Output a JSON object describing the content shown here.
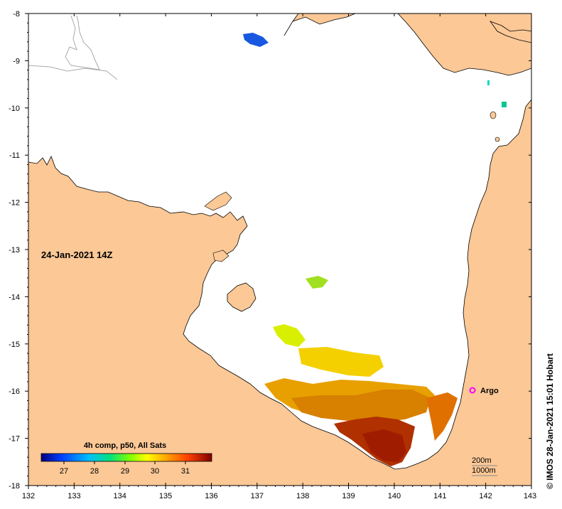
{
  "map": {
    "date_label": "24-Jan-2021 14Z",
    "lon_ticks": [
      "132",
      "133",
      "134",
      "135",
      "136",
      "137",
      "138",
      "139",
      "140",
      "141",
      "142",
      "143"
    ],
    "lat_ticks": [
      "-8",
      "-9",
      "-10",
      "-11",
      "-12",
      "-13",
      "-14",
      "-15",
      "-16",
      "-17",
      "-18"
    ],
    "argo_label": "Argo",
    "depth_labels": [
      "200m",
      "1000m"
    ],
    "credit": "© IMOS 28-Jan-2021 15:01 Hobart",
    "colors": {
      "land": "#fbc896",
      "sea": "#ffffff",
      "argo": "#ff00ff"
    }
  },
  "legend": {
    "title": "4h comp, p50, All Sats",
    "ticks": [
      "27",
      "28",
      "29",
      "30",
      "31"
    ]
  }
}
